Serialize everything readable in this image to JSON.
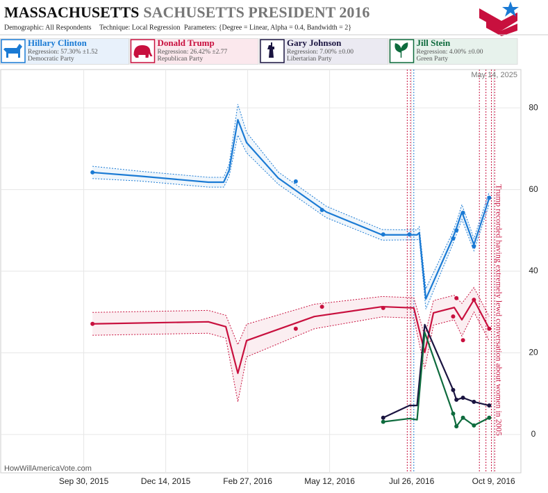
{
  "chart_data": {
    "type": "line",
    "title": "MASSACHUSETTS",
    "title_suffix": "SACHUSETTS PRESIDENT 2016",
    "demographic": "Demographic: All Respondents",
    "technique": "Technique: Local Regression",
    "parameters": "Parameters: {Degree = Linear, Alpha = 0.4, Bandwidth = 2}",
    "date_stamp": "May 14, 2025",
    "source": "HowWillAmericaVote.com",
    "annotation": "Trump recorded having extremely lewd conversation about women in 2005",
    "xlim": [
      "2015-07-16",
      "2016-11-03"
    ],
    "ylim": [
      -9.4,
      89.4
    ],
    "xticks": [
      {
        "value": "2015-09-30",
        "label": "Sep 30, 2015"
      },
      {
        "value": "2015-12-14",
        "label": "Dec 14, 2015"
      },
      {
        "value": "2016-02-27",
        "label": "Feb 27, 2016"
      },
      {
        "value": "2016-05-12",
        "label": "May 12, 2016"
      },
      {
        "value": "2016-07-26",
        "label": "Jul 26, 2016"
      },
      {
        "value": "2016-10-09",
        "label": "Oct 9, 2016"
      }
    ],
    "yticks": [
      0,
      20,
      40,
      60,
      80
    ],
    "grid": true,
    "events": [
      {
        "x": "2016-07-22",
        "color": "#c8103e"
      },
      {
        "x": "2016-07-25",
        "color": "#c8103e"
      },
      {
        "x": "2016-07-28",
        "color": "#1a7ad4"
      },
      {
        "x": "2016-09-26",
        "color": "#c8103e"
      },
      {
        "x": "2016-10-02",
        "color": "#c8103e"
      },
      {
        "x": "2016-10-07",
        "color": "#c8103e"
      },
      {
        "x": "2016-10-10",
        "color": "#c8103e"
      }
    ],
    "series": [
      {
        "name": "Hillary Clinton",
        "regression": "Regression: 57.30% ±1.52",
        "party": "Democratic Party",
        "color": "#1a7ad4",
        "x": [
          "2015-10-08",
          "2015-11-20",
          "2016-01-22",
          "2016-02-05",
          "2016-02-10",
          "2016-02-18",
          "2016-02-26",
          "2016-03-26",
          "2016-05-09",
          "2016-06-29",
          "2016-07-31",
          "2016-08-02",
          "2016-08-08",
          "2016-09-01",
          "2016-09-05",
          "2016-09-10",
          "2016-09-21",
          "2016-10-05"
        ],
        "values": [
          64.2,
          63.3,
          61.8,
          61.8,
          64.7,
          77.1,
          71.5,
          62.8,
          54.5,
          48.9,
          48.9,
          49.4,
          33.2,
          47.7,
          50.5,
          54.5,
          46.5,
          57.9
        ],
        "band": [
          1.5,
          1.2,
          1.2,
          1.2,
          1.5,
          3.8,
          2.5,
          1.5,
          1.4,
          1.3,
          1.2,
          1.5,
          2.5,
          1.5,
          1.5,
          1.8,
          1.5,
          1.5
        ],
        "poll_x": [
          "2015-10-08",
          "2016-04-11",
          "2016-05-05",
          "2016-06-30",
          "2016-07-24",
          "2016-09-02",
          "2016-09-05",
          "2016-09-11",
          "2016-09-21",
          "2016-10-05"
        ],
        "poll_values": [
          64.2,
          62.0,
          55.0,
          49.0,
          49.0,
          48.0,
          50.0,
          54.3,
          46.1,
          58.0
        ]
      },
      {
        "name": "Donald Trump",
        "regression": "Regression: 26.42% ±2.77",
        "party": "Republican Party",
        "color": "#c8103e",
        "x": [
          "2015-10-08",
          "2016-01-22",
          "2016-02-07",
          "2016-02-18",
          "2016-02-26",
          "2016-04-28",
          "2016-06-29",
          "2016-07-28",
          "2016-08-07",
          "2016-08-15",
          "2016-09-03",
          "2016-09-10",
          "2016-09-21",
          "2016-10-05"
        ],
        "values": [
          27.1,
          27.6,
          26.4,
          15.0,
          23.0,
          28.9,
          31.3,
          31.0,
          20.1,
          29.8,
          31.1,
          28.1,
          33.0,
          25.9
        ],
        "band": [
          2.8,
          2.8,
          2.8,
          7,
          4,
          3,
          2.5,
          2.5,
          4,
          3,
          3,
          4,
          3,
          3
        ],
        "poll_x": [
          "2015-10-08",
          "2016-04-11",
          "2016-05-05",
          "2016-06-30",
          "2016-09-02",
          "2016-09-05",
          "2016-09-11",
          "2016-09-21",
          "2016-10-05"
        ],
        "poll_values": [
          27.1,
          25.9,
          31.3,
          31.0,
          28.9,
          33.4,
          23.1,
          33.0,
          25.9
        ]
      },
      {
        "name": "Gary Johnson",
        "regression": "Regression: 7.00% ±0.00",
        "party": "Libertarian Party",
        "color": "#1a1440",
        "x": [
          "2016-06-30",
          "2016-07-24",
          "2016-07-31",
          "2016-08-07",
          "2016-09-02",
          "2016-09-05",
          "2016-09-11",
          "2016-09-21",
          "2016-10-05"
        ],
        "values": [
          4.1,
          7.1,
          7.1,
          26.9,
          10.9,
          8.5,
          9.0,
          8.0,
          7.1
        ],
        "poll_x": [
          "2016-06-30",
          "2016-09-02",
          "2016-09-05",
          "2016-09-11",
          "2016-09-21",
          "2016-10-05"
        ],
        "poll_values": [
          4.1,
          10.9,
          8.5,
          9.0,
          8.0,
          7.1
        ]
      },
      {
        "name": "Jill Stein",
        "regression": "Regression: 4.00% ±0.00",
        "party": "Green Party",
        "color": "#0e6b3d",
        "x": [
          "2016-06-30",
          "2016-07-24",
          "2016-07-31",
          "2016-08-07",
          "2016-09-02",
          "2016-09-05",
          "2016-09-11",
          "2016-09-21",
          "2016-10-05"
        ],
        "values": [
          3.1,
          3.9,
          3.6,
          25.0,
          5.1,
          2.0,
          4.1,
          2.2,
          4.1
        ],
        "poll_x": [
          "2016-06-30",
          "2016-09-02",
          "2016-09-05",
          "2016-09-11",
          "2016-09-21",
          "2016-10-05"
        ],
        "poll_values": [
          3.1,
          5.1,
          2.0,
          4.1,
          2.2,
          4.1
        ]
      }
    ]
  }
}
